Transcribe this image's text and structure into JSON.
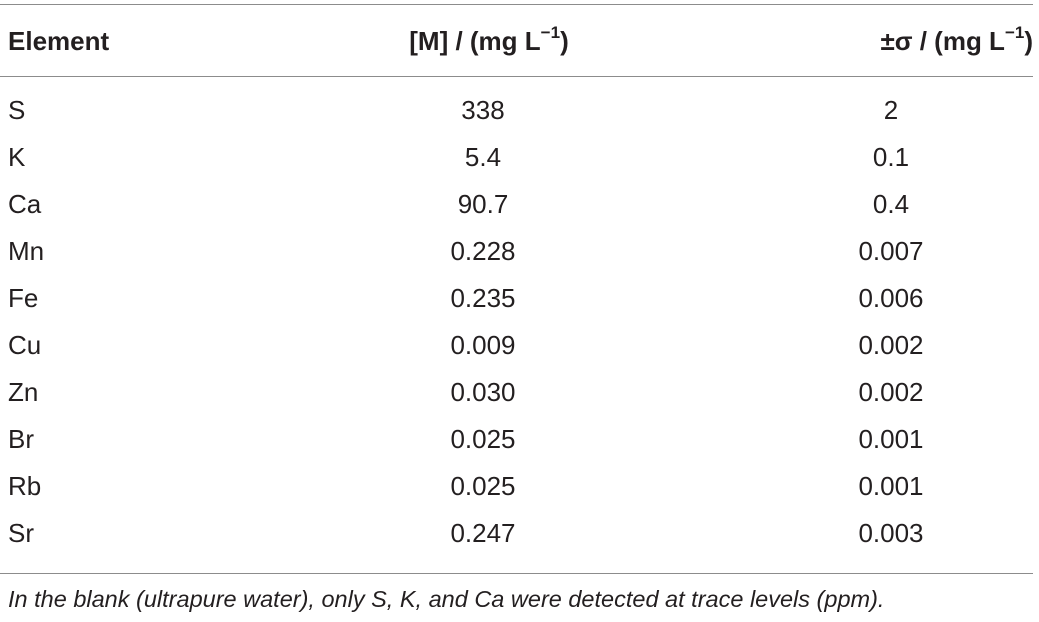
{
  "table": {
    "headers": {
      "element": "Element",
      "concentration_base": "[M] / (mg L",
      "concentration_exp": "−1",
      "concentration_close": ")",
      "sigma_base": "±σ / (mg L",
      "sigma_exp": "−1",
      "sigma_close": ")"
    },
    "rows": [
      {
        "element": "S",
        "concentration": "338",
        "sigma": "2"
      },
      {
        "element": "K",
        "concentration": "5.4",
        "sigma": "0.1"
      },
      {
        "element": "Ca",
        "concentration": "90.7",
        "sigma": "0.4"
      },
      {
        "element": "Mn",
        "concentration": "0.228",
        "sigma": "0.007"
      },
      {
        "element": "Fe",
        "concentration": "0.235",
        "sigma": "0.006"
      },
      {
        "element": "Cu",
        "concentration": "0.009",
        "sigma": "0.002"
      },
      {
        "element": "Zn",
        "concentration": "0.030",
        "sigma": "0.002"
      },
      {
        "element": "Br",
        "concentration": "0.025",
        "sigma": "0.001"
      },
      {
        "element": "Rb",
        "concentration": "0.025",
        "sigma": "0.001"
      },
      {
        "element": "Sr",
        "concentration": "0.247",
        "sigma": "0.003"
      }
    ],
    "footnote": "In the blank (ultrapure water), only S, K, and Ca were detected at trace levels (ppm)."
  }
}
